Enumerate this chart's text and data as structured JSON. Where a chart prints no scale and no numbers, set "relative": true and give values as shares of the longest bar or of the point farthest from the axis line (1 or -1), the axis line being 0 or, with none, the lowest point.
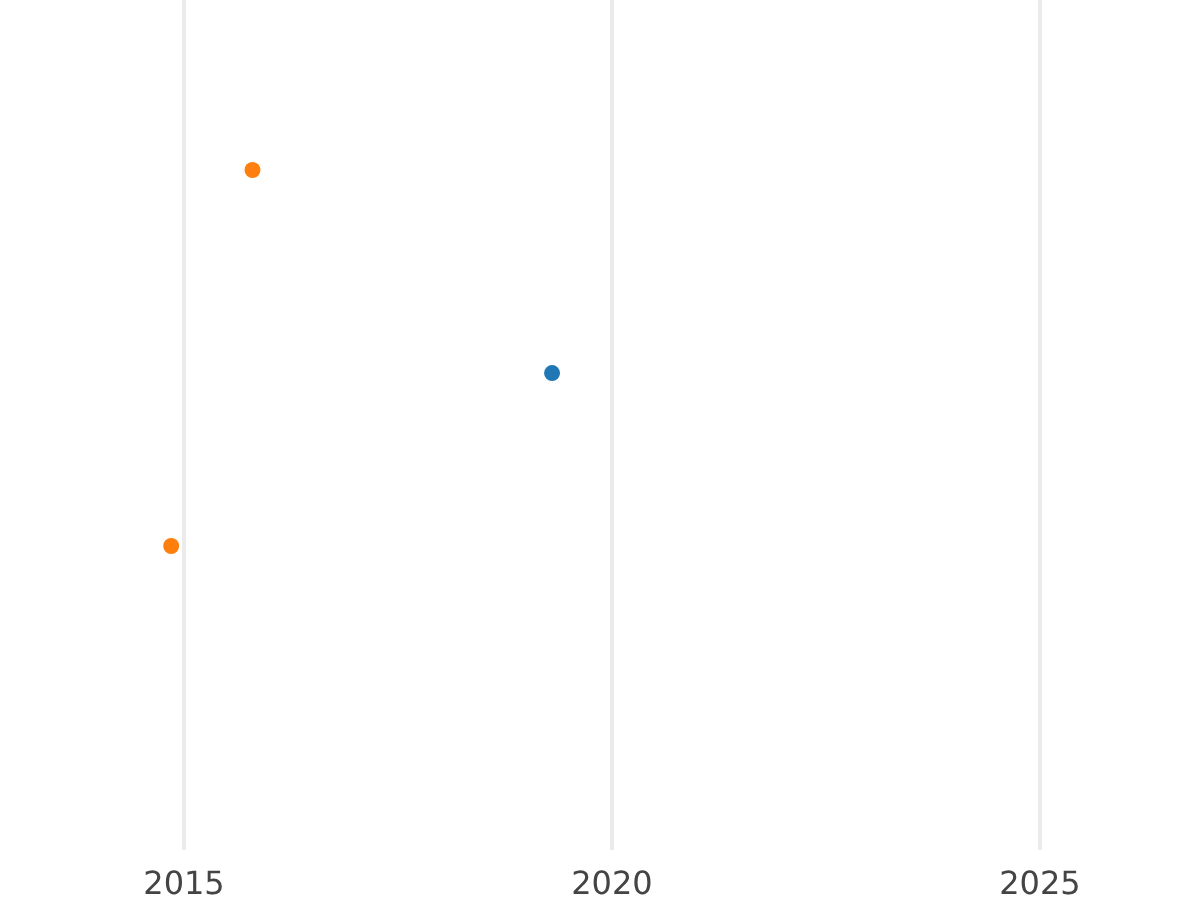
{
  "chart_data": {
    "type": "scatter",
    "relative": true,
    "xlim": [
      2012.85,
      2026.87
    ],
    "xticks": [
      2015,
      2020,
      2025
    ],
    "grid": "x",
    "marker": "circle",
    "series": [
      {
        "color": "#1f77b4",
        "x": [
          2019.3
        ],
        "values": [
          0.46
        ]
      },
      {
        "color": "#ff7f0e",
        "x": [
          2014.85,
          2015.8
        ],
        "values": [
          0,
          1
        ]
      }
    ]
  }
}
